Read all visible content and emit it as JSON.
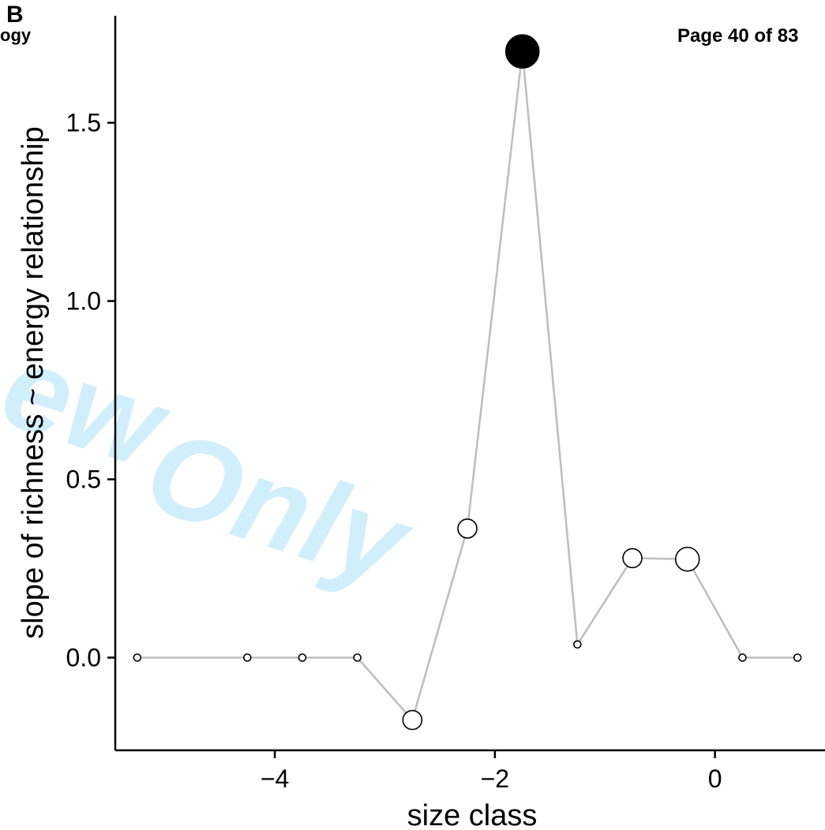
{
  "header": {
    "panel_label": "B",
    "journal_fragment": "ogy",
    "page_number": "Page 40 of 83"
  },
  "watermark": {
    "text_fragment_1": "ew",
    "text_fragment_2": "Only",
    "color": "#c9ecfb"
  },
  "chart_data": {
    "type": "scatter",
    "title": "",
    "xlabel": "size class",
    "ylabel": "slope of richness ~ energy relationship",
    "xlim": [
      -5.45,
      1.0
    ],
    "ylim": [
      -0.26,
      1.8
    ],
    "xticks": [
      -4,
      -2,
      0
    ],
    "xtick_labels": [
      "−4",
      "−2",
      "0"
    ],
    "yticks": [
      0.0,
      0.5,
      1.0,
      1.5
    ],
    "ytick_labels": [
      "0.0",
      "0.5",
      "1.0",
      "1.5"
    ],
    "grid": false,
    "line_color": "#bdbdbd",
    "series": [
      {
        "x": [
          -5.25,
          -4.25,
          -3.75,
          -3.25,
          -2.75,
          -2.25,
          -1.75,
          -1.25,
          -0.75,
          -0.25,
          0.25,
          0.75
        ],
        "y": [
          0.0,
          0.0,
          0.0,
          0.0,
          -0.175,
          0.362,
          1.7,
          0.037,
          0.279,
          0.276,
          0.0,
          0.0
        ],
        "marker_size": [
          1,
          1,
          1,
          1,
          2,
          2,
          4,
          1,
          2,
          2.5,
          1,
          1
        ],
        "filled": [
          false,
          false,
          false,
          false,
          false,
          false,
          true,
          false,
          false,
          false,
          false,
          false
        ]
      }
    ]
  }
}
